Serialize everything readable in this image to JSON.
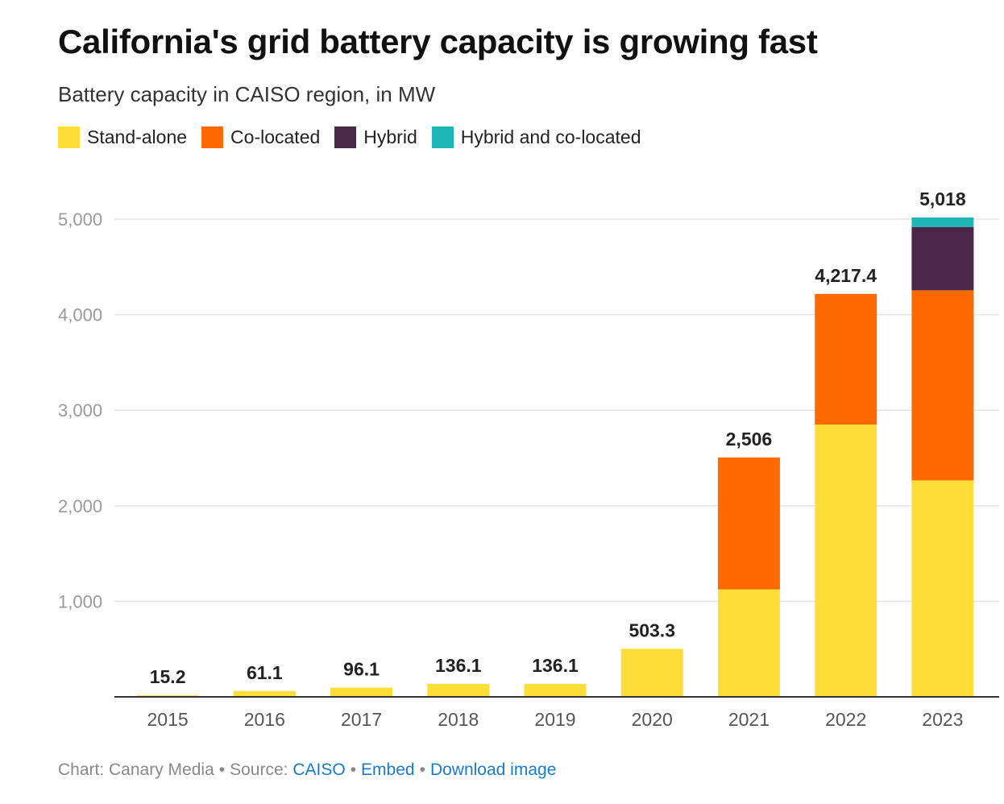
{
  "title": "California's grid battery capacity is growing fast",
  "subtitle": "Battery capacity in CAISO region, in MW",
  "legend": [
    {
      "label": "Stand-alone",
      "color": "#FFDE38"
    },
    {
      "label": "Co-located",
      "color": "#FF6A00"
    },
    {
      "label": "Hybrid",
      "color": "#4B2848"
    },
    {
      "label": "Hybrid and co-located",
      "color": "#1EB9B6"
    }
  ],
  "footer": {
    "chart_credit": "Chart: Canary Media",
    "source_label": "Source:",
    "source_link": "CAISO",
    "embed_link": "Embed",
    "download_link": "Download image",
    "separator": "•"
  },
  "chart_data": {
    "type": "bar",
    "stacked": true,
    "categories": [
      "2015",
      "2016",
      "2017",
      "2018",
      "2019",
      "2020",
      "2021",
      "2022",
      "2023"
    ],
    "series": [
      {
        "name": "Stand-alone",
        "color": "#FFDE38",
        "values": [
          15.2,
          61.1,
          96.1,
          136.1,
          136.1,
          503.3,
          1125,
          2850,
          2265
        ]
      },
      {
        "name": "Co-located",
        "color": "#FF6A00",
        "values": [
          0,
          0,
          0,
          0,
          0,
          0,
          1381,
          1367.4,
          1990
        ]
      },
      {
        "name": "Hybrid",
        "color": "#4B2848",
        "values": [
          0,
          0,
          0,
          0,
          0,
          0,
          0,
          0,
          663
        ]
      },
      {
        "name": "Hybrid and co-located",
        "color": "#1EB9B6",
        "values": [
          0,
          0,
          0,
          0,
          0,
          0,
          0,
          0,
          100
        ]
      }
    ],
    "totals": [
      "15.2",
      "61.1",
      "96.1",
      "136.1",
      "136.1",
      "503.3",
      "2,506",
      "4,217.4",
      "5,018"
    ],
    "ylim": [
      0,
      5000
    ],
    "yticks": [
      1000,
      2000,
      3000,
      4000,
      5000
    ],
    "ytick_labels": [
      "1,000",
      "2,000",
      "3,000",
      "4,000",
      "5,000"
    ],
    "xlabel": "",
    "ylabel": "",
    "grid": true
  }
}
